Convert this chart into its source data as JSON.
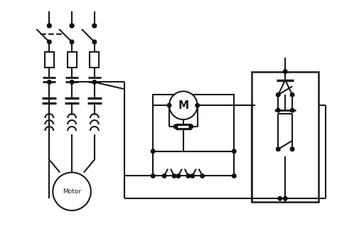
{
  "bg_color": "#ffffff",
  "line_color": "#1a1a1a",
  "dot_color": "#111111",
  "lw": 1.5,
  "fig_w": 4.74,
  "fig_h": 3.53,
  "dpi": 100
}
